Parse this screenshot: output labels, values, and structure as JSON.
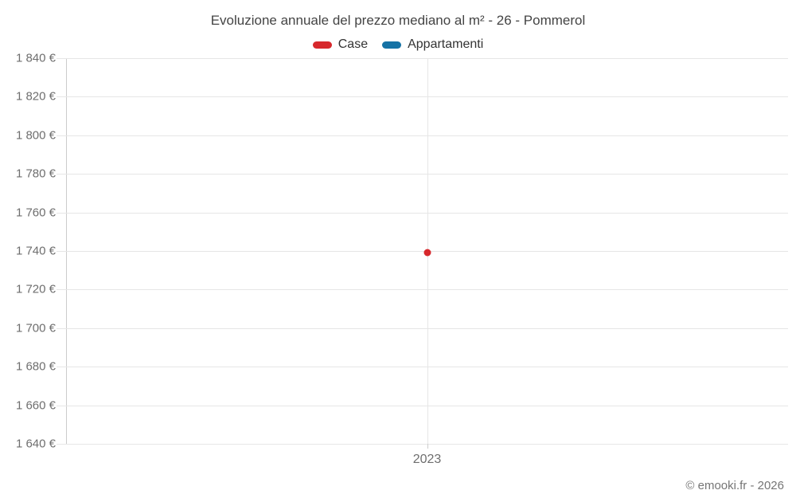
{
  "header": {
    "title": "Evoluzione annuale del prezzo mediano al m² - 26 - Pommerol"
  },
  "legend": {
    "items": [
      {
        "label": "Case",
        "color": "#d7282c"
      },
      {
        "label": "Appartamenti",
        "color": "#1572a5"
      }
    ]
  },
  "chart_data": {
    "type": "scatter",
    "title": "Evoluzione annuale del prezzo mediano al m² - 26 - Pommerol",
    "categories": [
      "2023"
    ],
    "series": [
      {
        "name": "Case",
        "color": "#d7282c",
        "points": [
          {
            "x": "2023",
            "y": 1739
          }
        ]
      },
      {
        "name": "Appartamenti",
        "color": "#1572a5",
        "points": []
      }
    ],
    "ylim": [
      1640,
      1840
    ],
    "ytick_step": 20,
    "ytick_labels": [
      "1 640 €",
      "1 660 €",
      "1 680 €",
      "1 700 €",
      "1 720 €",
      "1 740 €",
      "1 760 €",
      "1 780 €",
      "1 800 €",
      "1 820 €",
      "1 840 €"
    ],
    "xlabel": "",
    "ylabel": "",
    "grid": true,
    "legend_position": "top"
  },
  "footer": {
    "copyright": "© emooki.fr - 2026"
  },
  "colors": {
    "grid": "#e6e6e6",
    "axis": "#cccccc",
    "tick_label": "#6e6e6e",
    "title_text": "#444444"
  }
}
